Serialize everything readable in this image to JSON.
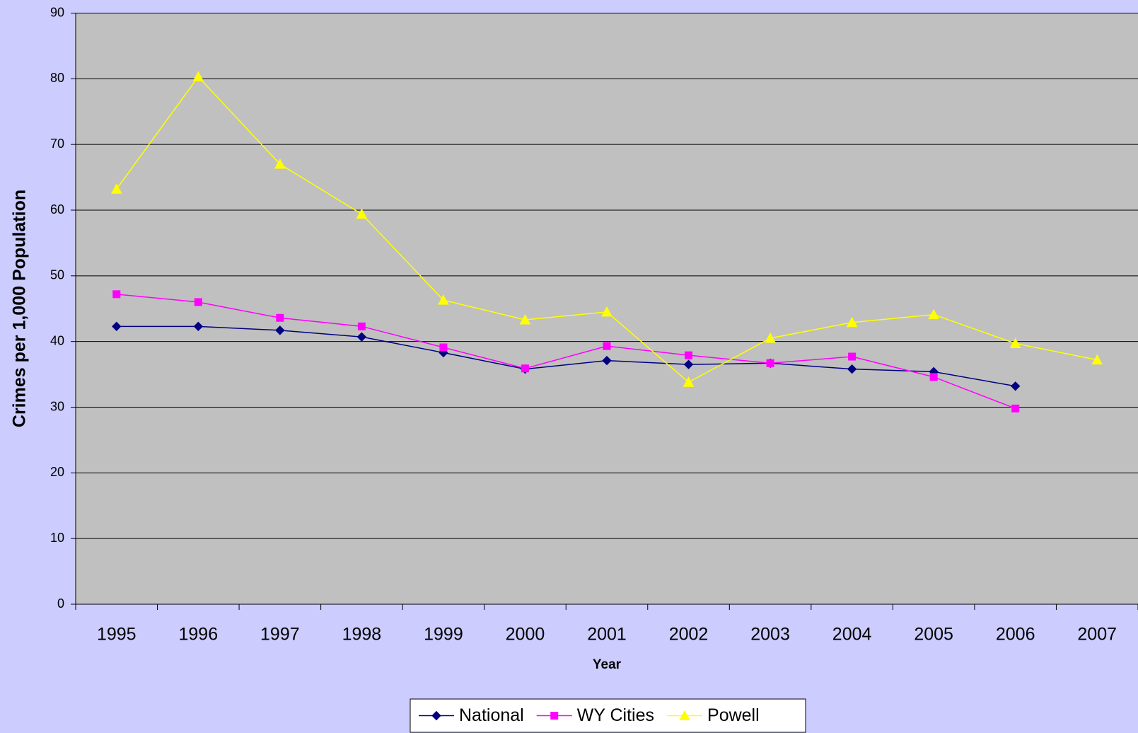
{
  "chart_data": {
    "type": "line",
    "x_label": "Year",
    "y_label": "Crimes per 1,000 Population",
    "categories": [
      "1995",
      "1996",
      "1997",
      "1998",
      "1999",
      "2000",
      "2001",
      "2002",
      "2003",
      "2004",
      "2005",
      "2006",
      "2007"
    ],
    "series": [
      {
        "name": "National",
        "color": "#000080",
        "marker": "diamond",
        "values": [
          42.3,
          42.3,
          41.7,
          40.7,
          38.3,
          35.8,
          37.1,
          36.5,
          36.7,
          35.8,
          35.4,
          33.2,
          null
        ]
      },
      {
        "name": "WY Cities",
        "color": "#ff00ff",
        "marker": "square",
        "values": [
          47.2,
          46.0,
          43.6,
          42.3,
          39.1,
          35.9,
          39.3,
          37.9,
          36.7,
          37.7,
          34.6,
          29.8,
          null
        ]
      },
      {
        "name": "Powell",
        "color": "#ffff00",
        "marker": "triangle",
        "values": [
          63.2,
          80.3,
          67.0,
          59.4,
          46.3,
          43.3,
          44.5,
          33.8,
          40.5,
          42.9,
          44.1,
          39.7,
          37.2
        ]
      }
    ],
    "ylim": [
      0,
      90
    ],
    "yticks": [
      0,
      10,
      20,
      30,
      40,
      50,
      60,
      70,
      80,
      90
    ],
    "grid": true,
    "legend": "bottom"
  }
}
